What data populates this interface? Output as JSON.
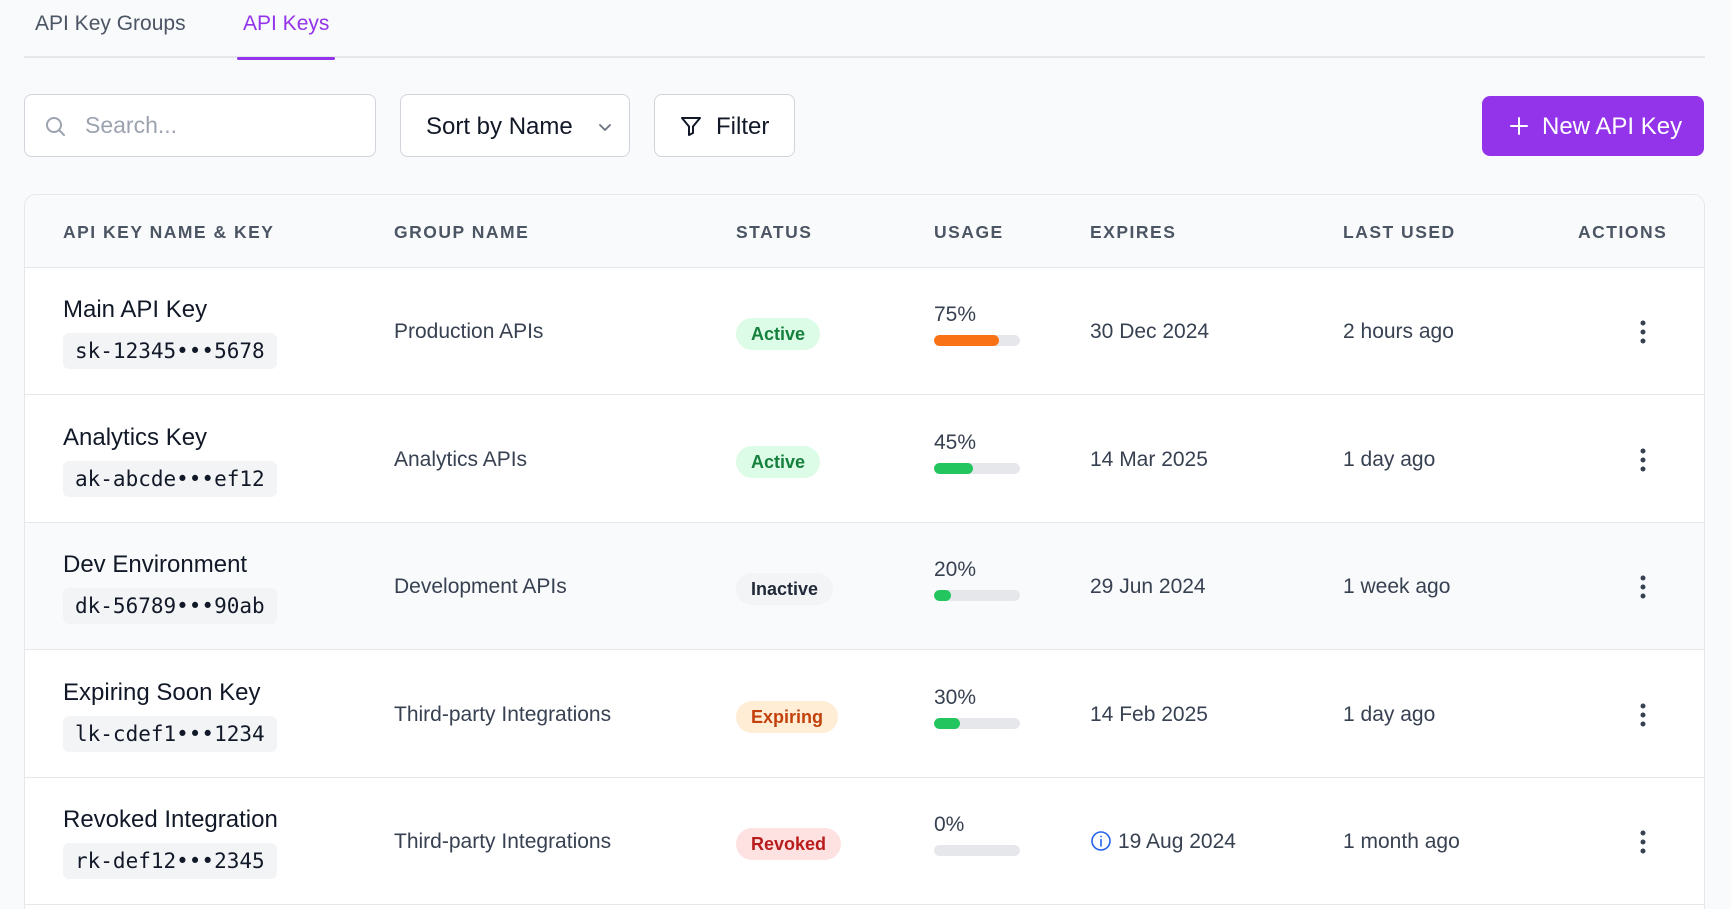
{
  "tabs": [
    {
      "label": "API Key Groups",
      "active": false
    },
    {
      "label": "API Keys",
      "active": true
    }
  ],
  "toolbar": {
    "search_placeholder": "Search...",
    "search_value": "",
    "sort_label": "Sort by Name",
    "filter_label": "Filter",
    "new_button_label": "New API Key"
  },
  "colors": {
    "accent": "#9333ea",
    "usage_high": "#f97316",
    "usage_normal": "#22c55e"
  },
  "table": {
    "headers": [
      "API KEY NAME & KEY",
      "GROUP NAME",
      "STATUS",
      "USAGE",
      "EXPIRES",
      "LAST USED",
      "ACTIONS"
    ],
    "rows": [
      {
        "name": "Main API Key",
        "key": "sk-12345•••5678",
        "group": "Production APIs",
        "status": "Active",
        "usage": "75%",
        "usage_fraction": 0.75,
        "usage_color": "#f97316",
        "expires": "30 Dec 2024",
        "expires_warning": false,
        "last_used": "2 hours ago",
        "action_icon": "more-vertical-icon"
      },
      {
        "name": "Analytics Key",
        "key": "ak-abcde•••ef12",
        "group": "Analytics APIs",
        "status": "Active",
        "usage": "45%",
        "usage_fraction": 0.45,
        "usage_color": "#22c55e",
        "expires": "14 Mar 2025",
        "expires_warning": false,
        "last_used": "1 day ago",
        "action_icon": "more-vertical-icon"
      },
      {
        "name": "Dev Environment",
        "key": "dk-56789•••90ab",
        "group": "Development APIs",
        "status": "Inactive",
        "usage": "20%",
        "usage_fraction": 0.2,
        "usage_color": "#22c55e",
        "expires": "29 Jun 2024",
        "expires_warning": false,
        "last_used": "1 week ago",
        "action_icon": "more-vertical-icon"
      },
      {
        "name": "Expiring Soon Key",
        "key": "lk-cdef1•••1234",
        "group": "Third-party Integrations",
        "status": "Expiring",
        "usage": "30%",
        "usage_fraction": 0.3,
        "usage_color": "#22c55e",
        "expires": "14 Feb 2025",
        "expires_warning": false,
        "last_used": "1 day ago",
        "action_icon": "more-vertical-icon"
      },
      {
        "name": "Revoked Integration",
        "key": "rk-def12•••2345",
        "group": "Third-party Integrations",
        "status": "Revoked",
        "usage": "0%",
        "usage_fraction": 0,
        "usage_color": "#22c55e",
        "expires": "19 Aug 2024",
        "expires_warning": true,
        "last_used": "1 month ago",
        "action_icon": "more-vertical-icon"
      }
    ]
  },
  "status_styles": {
    "Active": {
      "bg": "#dcfce7",
      "fg": "#15803d"
    },
    "Inactive": {
      "bg": "#f3f4f6",
      "fg": "#1f2937"
    },
    "Expiring": {
      "bg": "#ffedd5",
      "fg": "#c2410c"
    },
    "Revoked": {
      "bg": "#fee2e2",
      "fg": "#b91c1c"
    }
  }
}
